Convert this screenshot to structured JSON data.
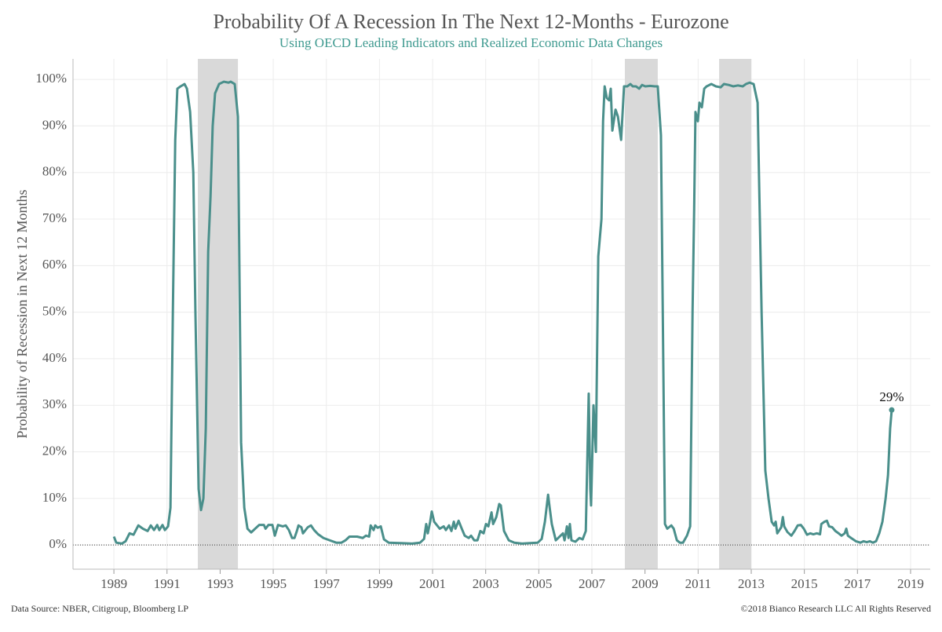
{
  "chart_data": {
    "type": "line",
    "title": "Probability Of A Recession In The Next 12-Months - Eurozone",
    "subtitle": "Using OECD Leading Indicators and Realized Economic Data Changes",
    "y_label": "Probability of Recession in Next 12 Months",
    "source": "Data Source: NBER, Citigroup, Bloomberg LP",
    "copyright": "©2018 Bianco Research LLC  All Rights Reserved",
    "annotation": "29%",
    "shade_color": "#d9d9d9",
    "shaded_periods": [
      [
        1992.16,
        1993.67
      ],
      [
        2008.24,
        2009.48
      ],
      [
        2011.79,
        2013.0
      ]
    ],
    "xlim": [
      1987.46,
      2019.74
    ],
    "xticks": [
      1989,
      1991,
      1993,
      1995,
      1997,
      1999,
      2001,
      2003,
      2005,
      2007,
      2009,
      2011,
      2013,
      2015,
      2017,
      2019
    ],
    "ylim": [
      -5.2,
      104.4
    ],
    "yticks": [
      {
        "value": 0,
        "label": "0%"
      },
      {
        "value": 10,
        "label": "10%"
      },
      {
        "value": 20,
        "label": "20%"
      },
      {
        "value": 30,
        "label": "30%"
      },
      {
        "value": 40,
        "label": "40%"
      },
      {
        "value": 50,
        "label": "50%"
      },
      {
        "value": 60,
        "label": "60%"
      },
      {
        "value": 70,
        "label": "70%"
      },
      {
        "value": 80,
        "label": "80%"
      },
      {
        "value": 90,
        "label": "90%"
      },
      {
        "value": 100,
        "label": "100%"
      }
    ],
    "grid": true,
    "x": [
      1989.0,
      1989.09,
      1989.3,
      1989.44,
      1989.59,
      1989.74,
      1989.92,
      1990.09,
      1990.27,
      1990.39,
      1990.51,
      1990.63,
      1990.71,
      1990.83,
      1990.92,
      1991.04,
      1991.13,
      1991.22,
      1991.31,
      1991.39,
      1991.51,
      1991.66,
      1991.75,
      1991.87,
      1991.99,
      1992.07,
      1992.19,
      1992.28,
      1992.37,
      1992.46,
      1992.55,
      1992.64,
      1992.72,
      1992.81,
      1992.96,
      1993.14,
      1993.32,
      1993.4,
      1993.55,
      1993.67,
      1993.79,
      1993.91,
      1994.03,
      1994.17,
      1994.32,
      1994.47,
      1994.65,
      1994.71,
      1994.82,
      1994.97,
      1995.06,
      1995.18,
      1995.36,
      1995.47,
      1995.59,
      1995.71,
      1995.8,
      1995.89,
      1995.95,
      1996.06,
      1996.12,
      1996.3,
      1996.42,
      1996.54,
      1996.69,
      1996.89,
      1997.13,
      1997.37,
      1997.57,
      1997.72,
      1997.87,
      1998.16,
      1998.37,
      1998.49,
      1998.61,
      1998.67,
      1998.78,
      1998.84,
      1998.93,
      1999.05,
      1999.17,
      1999.35,
      1999.79,
      2000.23,
      2000.53,
      2000.68,
      2000.76,
      2000.82,
      2000.91,
      2000.97,
      2001.06,
      2001.27,
      2001.42,
      2001.5,
      2001.62,
      2001.71,
      2001.8,
      2001.86,
      2001.98,
      2002.1,
      2002.21,
      2002.36,
      2002.45,
      2002.57,
      2002.69,
      2002.8,
      2002.92,
      2003.01,
      2003.1,
      2003.22,
      2003.28,
      2003.4,
      2003.51,
      2003.57,
      2003.69,
      2003.87,
      2004.08,
      2004.37,
      2004.67,
      2004.96,
      2005.11,
      2005.23,
      2005.35,
      2005.41,
      2005.49,
      2005.64,
      2005.82,
      2005.91,
      2005.97,
      2006.06,
      2006.12,
      2006.17,
      2006.23,
      2006.38,
      2006.53,
      2006.65,
      2006.77,
      2006.88,
      2006.94,
      2006.97,
      2007.06,
      2007.15,
      2007.24,
      2007.36,
      2007.42,
      2007.48,
      2007.56,
      2007.65,
      2007.71,
      2007.77,
      2007.89,
      2007.98,
      2008.1,
      2008.21,
      2008.33,
      2008.45,
      2008.54,
      2008.66,
      2008.78,
      2008.89,
      2009.01,
      2009.19,
      2009.37,
      2009.48,
      2009.6,
      2009.75,
      2009.84,
      2009.99,
      2010.08,
      2010.2,
      2010.31,
      2010.43,
      2010.58,
      2010.7,
      2010.79,
      2010.85,
      2010.9,
      2010.99,
      2011.05,
      2011.14,
      2011.23,
      2011.32,
      2011.5,
      2011.67,
      2011.85,
      2011.97,
      2012.15,
      2012.32,
      2012.5,
      2012.68,
      2012.8,
      2012.94,
      2013.09,
      2013.24,
      2013.39,
      2013.53,
      2013.65,
      2013.77,
      2013.86,
      2013.92,
      2013.98,
      2014.13,
      2014.19,
      2014.24,
      2014.36,
      2014.51,
      2014.63,
      2014.75,
      2014.87,
      2014.98,
      2015.1,
      2015.22,
      2015.34,
      2015.47,
      2015.59,
      2015.64,
      2015.76,
      2015.85,
      2015.93,
      2016.05,
      2016.17,
      2016.29,
      2016.4,
      2016.52,
      2016.58,
      2016.64,
      2016.76,
      2016.94,
      2017.11,
      2017.23,
      2017.35,
      2017.47,
      2017.58,
      2017.7,
      2017.82,
      2017.94,
      2018.06,
      2018.15,
      2018.23,
      2018.29
    ],
    "series": [
      {
        "name": "Probability of Recession",
        "color": "#4a8f8b",
        "values": [
          1.8,
          0.5,
          0.3,
          0.8,
          2.5,
          2.2,
          4.2,
          3.5,
          3.0,
          4.2,
          3.2,
          4.3,
          3.2,
          4.3,
          3.2,
          4.0,
          8,
          50,
          87,
          98,
          98.5,
          99,
          98,
          93,
          80,
          50,
          12,
          7.5,
          10,
          25,
          63,
          75,
          90,
          97,
          99,
          99.5,
          99.3,
          99.5,
          99,
          92,
          22,
          8,
          3.5,
          2.7,
          3.5,
          4.3,
          4.3,
          3.5,
          4.3,
          4.3,
          2,
          4.3,
          4,
          4.2,
          3.2,
          1.5,
          1.5,
          3,
          4.2,
          3.8,
          2.5,
          3.8,
          4.2,
          3.2,
          2.3,
          1.5,
          1,
          0.5,
          0.5,
          1,
          1.8,
          1.8,
          1.5,
          2,
          1.8,
          4.2,
          3.2,
          4.2,
          3.7,
          4,
          1.2,
          0.5,
          0.4,
          0.3,
          0.5,
          1.3,
          4.5,
          2.5,
          5,
          7.2,
          5,
          3.5,
          4,
          3.2,
          4.2,
          3,
          5,
          3.5,
          5.2,
          3.5,
          2,
          1.5,
          2,
          1,
          1,
          3,
          2.5,
          4.5,
          4,
          7,
          4.5,
          6,
          8.8,
          8.5,
          3,
          1,
          0.5,
          0.3,
          0.4,
          0.5,
          1.3,
          5,
          10.8,
          8,
          4.5,
          1,
          2,
          2.5,
          1,
          4,
          1.5,
          4.5,
          1,
          0.7,
          1.5,
          1.2,
          3,
          32.5,
          12,
          8.5,
          30,
          20,
          62,
          70,
          91,
          98.5,
          96,
          95.5,
          98,
          89,
          93.5,
          92,
          87,
          98.5,
          98.5,
          99,
          98.5,
          98.5,
          98,
          98.8,
          98.5,
          98.6,
          98.5,
          98.5,
          88,
          4.5,
          3.5,
          4.2,
          3.5,
          1,
          0.5,
          0.5,
          2,
          4,
          50,
          72,
          93,
          91,
          95,
          94,
          98,
          98.5,
          99,
          98.5,
          98.3,
          99,
          98.8,
          98.5,
          98.7,
          98.5,
          99,
          99.3,
          99,
          95,
          50,
          16,
          10,
          5,
          4.2,
          5,
          2.5,
          3.8,
          6,
          4,
          2.8,
          2,
          3,
          4.2,
          4.3,
          3.5,
          2.2,
          2.5,
          2.3,
          2.5,
          2.3,
          4.5,
          5,
          5.2,
          4,
          3.8,
          3,
          2.5,
          2,
          2.5,
          3.5,
          2,
          1.5,
          0.8,
          0.5,
          0.8,
          0.6,
          0.8,
          0.5,
          0.8,
          2.5,
          5,
          10,
          15,
          25,
          29
        ]
      }
    ]
  }
}
